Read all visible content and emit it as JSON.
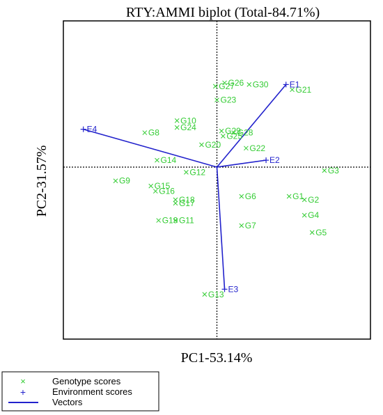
{
  "chart_data": {
    "type": "scatter",
    "title": "RTY:AMMI biplot (Total-84.71%)",
    "xlabel": "PC1-53.14%",
    "ylabel": "PC2-31.57%",
    "xlim": [
      -1.0,
      1.0
    ],
    "ylim": [
      -1.0,
      0.85
    ],
    "grid": false,
    "reference_lines": {
      "x": 0,
      "y": 0,
      "style": "dotted"
    },
    "legend_position": "bottom-left",
    "colors": {
      "genotype": "#33cc33",
      "environment": "#2222cc",
      "vector": "#2222cc"
    },
    "genotypes": [
      {
        "name": "G1",
        "x": 0.47,
        "y": -0.17
      },
      {
        "name": "G2",
        "x": 0.57,
        "y": -0.19
      },
      {
        "name": "G3",
        "x": 0.7,
        "y": -0.02
      },
      {
        "name": "G4",
        "x": 0.57,
        "y": -0.28
      },
      {
        "name": "G5",
        "x": 0.62,
        "y": -0.38
      },
      {
        "name": "G6",
        "x": 0.16,
        "y": -0.17
      },
      {
        "name": "G7",
        "x": 0.16,
        "y": -0.34
      },
      {
        "name": "G8",
        "x": -0.47,
        "y": 0.2
      },
      {
        "name": "G9",
        "x": -0.66,
        "y": -0.08
      },
      {
        "name": "G10",
        "x": -0.26,
        "y": 0.27
      },
      {
        "name": "G11",
        "x": -0.27,
        "y": -0.31
      },
      {
        "name": "G12",
        "x": -0.2,
        "y": -0.03
      },
      {
        "name": "G13",
        "x": -0.08,
        "y": -0.74
      },
      {
        "name": "G14",
        "x": -0.39,
        "y": 0.04
      },
      {
        "name": "G15",
        "x": -0.43,
        "y": -0.11
      },
      {
        "name": "G16",
        "x": -0.4,
        "y": -0.14
      },
      {
        "name": "G17",
        "x": -0.27,
        "y": -0.21
      },
      {
        "name": "G18",
        "x": -0.27,
        "y": -0.19
      },
      {
        "name": "G19",
        "x": -0.38,
        "y": -0.31
      },
      {
        "name": "G20",
        "x": -0.1,
        "y": 0.13
      },
      {
        "name": "G21",
        "x": 0.49,
        "y": 0.45
      },
      {
        "name": "G22",
        "x": 0.19,
        "y": 0.11
      },
      {
        "name": "G23",
        "x": 0.0,
        "y": 0.39
      },
      {
        "name": "G24",
        "x": -0.26,
        "y": 0.23
      },
      {
        "name": "G25",
        "x": 0.04,
        "y": 0.18
      },
      {
        "name": "G26",
        "x": 0.05,
        "y": 0.49
      },
      {
        "name": "G27",
        "x": -0.01,
        "y": 0.47
      },
      {
        "name": "G28",
        "x": 0.11,
        "y": 0.2
      },
      {
        "name": "G29",
        "x": 0.03,
        "y": 0.21
      },
      {
        "name": "G30",
        "x": 0.21,
        "y": 0.48
      }
    ],
    "environments": [
      {
        "name": "E1",
        "x": 0.45,
        "y": 0.48
      },
      {
        "name": "E2",
        "x": 0.32,
        "y": 0.04
      },
      {
        "name": "E3",
        "x": 0.05,
        "y": -0.71
      },
      {
        "name": "E4",
        "x": -0.87,
        "y": 0.22
      }
    ],
    "legend": [
      {
        "symbol": "×",
        "label": "Genotype scores"
      },
      {
        "symbol": "+",
        "label": "Environment scores"
      },
      {
        "symbol": "line",
        "label": "Vectors"
      }
    ]
  }
}
